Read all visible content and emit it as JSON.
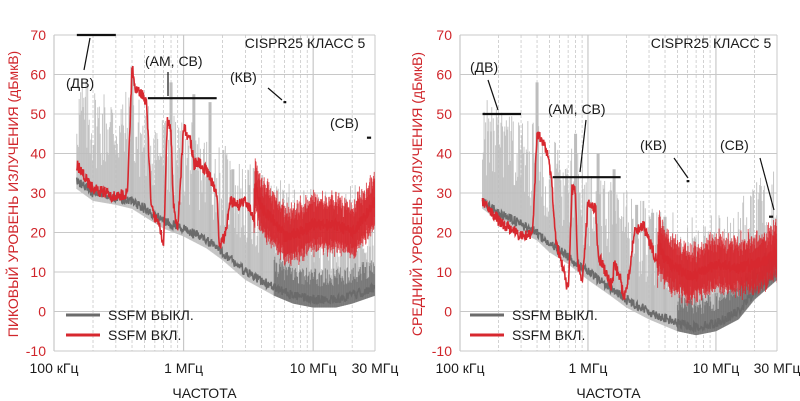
{
  "colors": {
    "ssfm_off": "#6b6b6b",
    "ssfm_off_light": "#bdbdbd",
    "ssfm_on": "#d7282f",
    "grid": "#c8c8c8",
    "axis_label": "#d0262b"
  },
  "chart_data": [
    {
      "type": "line",
      "ylabel": "ПИКОВЫЙ УРОВЕНЬ ИЗЛУЧЕНИЯ (дБмкВ)",
      "xlabel": "ЧАСТОТА",
      "x_scale": "log",
      "x_unit": "Hz",
      "xlim": [
        100000,
        30000000
      ],
      "ylim": [
        -10,
        70
      ],
      "x_ticks": [
        {
          "value": 100000,
          "label": "100 кГц"
        },
        {
          "value": 1000000,
          "label": "1 МГц"
        },
        {
          "value": 10000000,
          "label": "10 МГц"
        },
        {
          "value": 30000000,
          "label": "30 МГц"
        }
      ],
      "y_ticks": [
        -10,
        0,
        10,
        20,
        30,
        40,
        50,
        60,
        70
      ],
      "grid": true,
      "legend_position": "bottom-left",
      "title": "CISPR25 КЛАСС 5",
      "limit_labels": [
        "(ДВ)",
        "(АМ, СВ)",
        "(КВ)",
        "(СВ)"
      ],
      "limit_lines": [
        {
          "x": [
            150000,
            300000
          ],
          "y": 70
        },
        {
          "x": [
            530000,
            1800000
          ],
          "y": 54
        },
        {
          "x": [
            5900000,
            6200000
          ],
          "y": 53
        },
        {
          "x": [
            26000000,
            28000000
          ],
          "y": 44
        }
      ],
      "series": [
        {
          "name": "SSFM ВЫКЛ.",
          "x": [
            150000,
            200000,
            300000,
            400000,
            500000,
            700000,
            1000000,
            1500000,
            2000000,
            3000000,
            5000000,
            7000000,
            10000000,
            15000000,
            20000000,
            30000000
          ],
          "y": [
            33,
            30,
            29,
            28,
            26,
            23,
            21,
            18,
            15,
            10,
            6,
            4,
            3,
            3,
            4,
            6
          ],
          "spikes": [
            {
              "x": 400000,
              "y": 62
            },
            {
              "x": 800000,
              "y": 58
            },
            {
              "x": 1200000,
              "y": 55
            },
            {
              "x": 1600000,
              "y": 53
            },
            {
              "x": 2400000,
              "y": 36
            },
            {
              "x": 3200000,
              "y": 32
            },
            {
              "x": 4000000,
              "y": 30
            }
          ]
        },
        {
          "name": "SSFM ВКЛ.",
          "x": [
            150000,
            200000,
            250000,
            300000,
            370000,
            400000,
            430000,
            480000,
            520000,
            560000,
            600000,
            650000,
            700000,
            750000,
            800000,
            830000,
            900000,
            1000000,
            1150000,
            1200000,
            1300000,
            1550000,
            1600000,
            1800000,
            1900000,
            2100000,
            2300000,
            2700000,
            3000000,
            3500000,
            3600000,
            4000000,
            5000000,
            6000000,
            8000000,
            10000000,
            15000000,
            20000000,
            25000000,
            30000000
          ],
          "y": [
            37,
            31,
            30,
            29,
            30,
            62,
            56,
            55,
            52,
            28,
            24,
            22,
            16,
            48,
            46,
            28,
            20,
            47,
            42,
            37,
            38,
            35,
            34,
            30,
            16,
            20,
            28,
            27,
            28,
            24,
            32,
            26,
            23,
            19,
            20,
            22,
            22,
            20,
            24,
            28
          ]
        }
      ]
    },
    {
      "type": "line",
      "ylabel": "СРЕДНИЙ УРОВЕНЬ ИЗЛУЧЕНИЯ (дБмкВ)",
      "xlabel": "ЧАСТОТА",
      "x_scale": "log",
      "x_unit": "Hz",
      "xlim": [
        100000,
        30000000
      ],
      "ylim": [
        -10,
        70
      ],
      "x_ticks": [
        {
          "value": 100000,
          "label": "100 кГц"
        },
        {
          "value": 1000000,
          "label": "1 МГц"
        },
        {
          "value": 10000000,
          "label": "10 МГц"
        },
        {
          "value": 30000000,
          "label": "30 МГц"
        }
      ],
      "y_ticks": [
        -10,
        0,
        10,
        20,
        30,
        40,
        50,
        60,
        70
      ],
      "grid": true,
      "legend_position": "bottom-left",
      "title": "CISPR25 КЛАСС 5",
      "limit_labels": [
        "(ДВ)",
        "(АМ, СВ)",
        "(КВ)",
        "(СВ)"
      ],
      "limit_lines": [
        {
          "x": [
            150000,
            300000
          ],
          "y": 50
        },
        {
          "x": [
            530000,
            1800000
          ],
          "y": 34
        },
        {
          "x": [
            5900000,
            6200000
          ],
          "y": 33
        },
        {
          "x": [
            26000000,
            28000000
          ],
          "y": 24
        }
      ],
      "series": [
        {
          "name": "SSFM ВЫКЛ.",
          "x": [
            150000,
            200000,
            300000,
            400000,
            500000,
            700000,
            1000000,
            1500000,
            2000000,
            3000000,
            5000000,
            7000000,
            10000000,
            15000000,
            20000000,
            30000000
          ],
          "y": [
            28,
            25,
            22,
            20,
            17,
            14,
            10,
            6,
            3,
            0,
            -3,
            -4,
            -3,
            0,
            5,
            10
          ],
          "spikes": [
            {
              "x": 400000,
              "y": 58
            },
            {
              "x": 800000,
              "y": 45
            },
            {
              "x": 1200000,
              "y": 40
            },
            {
              "x": 1600000,
              "y": 36
            },
            {
              "x": 2400000,
              "y": 27
            },
            {
              "x": 3200000,
              "y": 25
            },
            {
              "x": 4000000,
              "y": 24
            }
          ]
        },
        {
          "name": "SSFM ВКЛ.",
          "x": [
            150000,
            200000,
            250000,
            300000,
            370000,
            400000,
            430000,
            480000,
            520000,
            560000,
            600000,
            650000,
            700000,
            750000,
            800000,
            830000,
            900000,
            1000000,
            1150000,
            1200000,
            1300000,
            1550000,
            1600000,
            1800000,
            1900000,
            2100000,
            2300000,
            2700000,
            3000000,
            3500000,
            3600000,
            4000000,
            5000000,
            6000000,
            8000000,
            10000000,
            15000000,
            20000000,
            25000000,
            30000000
          ],
          "y": [
            28,
            23,
            21,
            19,
            20,
            45,
            44,
            40,
            33,
            18,
            14,
            10,
            5,
            31,
            30,
            12,
            7,
            27,
            26,
            14,
            12,
            6,
            12,
            8,
            3,
            10,
            20,
            22,
            18,
            12,
            17,
            13,
            11,
            9,
            10,
            12,
            11,
            12,
            13,
            15
          ]
        }
      ]
    }
  ]
}
